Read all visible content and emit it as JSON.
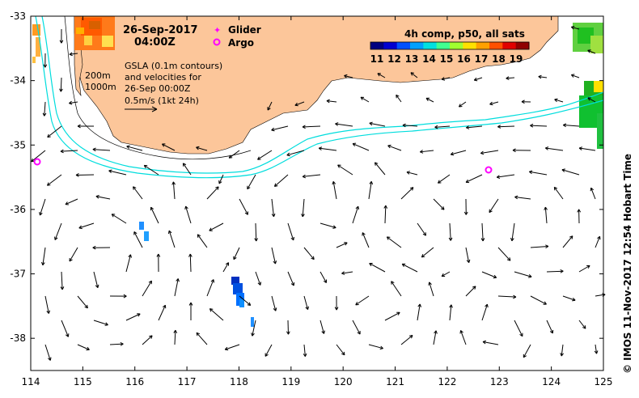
{
  "title": {
    "date": "26-Sep-2017",
    "time": "04:00Z"
  },
  "legend": {
    "glider": "Glider",
    "argo": "Argo",
    "glider_color": "#ff00ff",
    "argo_color": "#ff00ff"
  },
  "notes": {
    "line1": "GSLA (0.1m contours)",
    "line2": "and velocities for",
    "line3": "26-Sep 00:00Z",
    "line4": "0.5m/s (1kt 24h)"
  },
  "isobaths": {
    "a": "200m",
    "b": "1000m"
  },
  "colorbar": {
    "title": "4h comp, p50, all sats",
    "ticks": [
      "11",
      "12",
      "13",
      "14",
      "15",
      "16",
      "17",
      "18",
      "19"
    ],
    "values": [
      11,
      12,
      13,
      14,
      15,
      16,
      17,
      18,
      19
    ],
    "colors": [
      "#000080",
      "#0000d0",
      "#0050ff",
      "#00a0ff",
      "#00e0e0",
      "#40ff90",
      "#a0ff30",
      "#ffe000",
      "#ffa000",
      "#ff5000",
      "#e00000",
      "#900000"
    ]
  },
  "axes": {
    "x_ticks": [
      "114",
      "115",
      "116",
      "117",
      "118",
      "119",
      "120",
      "121",
      "122",
      "123",
      "124",
      "125"
    ],
    "x_values": [
      114,
      115,
      116,
      117,
      118,
      119,
      120,
      121,
      122,
      123,
      124,
      125
    ],
    "y_ticks": [
      "-33",
      "-34",
      "-35",
      "-36",
      "-37",
      "-38"
    ],
    "y_values": [
      -33,
      -34,
      -35,
      -36,
      -37,
      -38
    ]
  },
  "credit": "© IMOS 11-Nov-2017 12:54 Hobart Time",
  "colors": {
    "land": "#fcc69a",
    "contour": "#00dddd",
    "frame": "#000000"
  }
}
